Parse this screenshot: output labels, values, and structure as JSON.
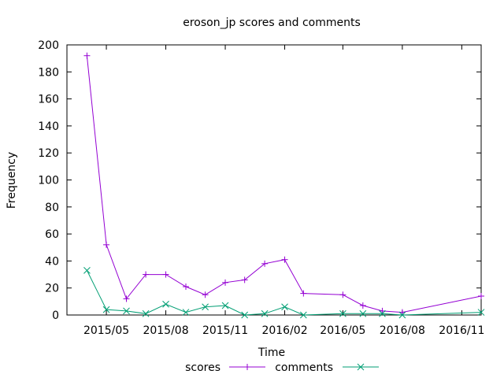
{
  "chart_data": {
    "type": "line",
    "title": "eroson_jp scores and comments",
    "xlabel": "Time",
    "ylabel": "Frequency",
    "ylim": [
      0,
      200
    ],
    "yticks": [
      0,
      20,
      40,
      60,
      80,
      100,
      120,
      140,
      160,
      180,
      200
    ],
    "xlim": [
      "2015-03-01",
      "2016-12-01"
    ],
    "xticks": [
      {
        "value": "2015-05-01",
        "label": "2015/05"
      },
      {
        "value": "2015-08-01",
        "label": "2015/08"
      },
      {
        "value": "2015-11-01",
        "label": "2015/11"
      },
      {
        "value": "2016-02-01",
        "label": "2016/02"
      },
      {
        "value": "2016-05-01",
        "label": "2016/05"
      },
      {
        "value": "2016-08-01",
        "label": "2016/08"
      },
      {
        "value": "2016-11-01",
        "label": "2016/11"
      }
    ],
    "legend_position": "bottom",
    "series": [
      {
        "name": "scores",
        "color": "#9400d3",
        "marker": "plus",
        "points": [
          {
            "x": "2015-04-01",
            "y": 192
          },
          {
            "x": "2015-05-01",
            "y": 52
          },
          {
            "x": "2015-06-01",
            "y": 12
          },
          {
            "x": "2015-07-01",
            "y": 30
          },
          {
            "x": "2015-08-01",
            "y": 30
          },
          {
            "x": "2015-09-01",
            "y": 21
          },
          {
            "x": "2015-10-01",
            "y": 15
          },
          {
            "x": "2015-11-01",
            "y": 24
          },
          {
            "x": "2015-12-01",
            "y": 26
          },
          {
            "x": "2016-01-01",
            "y": 38
          },
          {
            "x": "2016-02-01",
            "y": 41
          },
          {
            "x": "2016-03-01",
            "y": 16
          },
          {
            "x": "2016-05-01",
            "y": 15
          },
          {
            "x": "2016-06-01",
            "y": 7
          },
          {
            "x": "2016-07-01",
            "y": 3
          },
          {
            "x": "2016-08-01",
            "y": 2
          },
          {
            "x": "2016-12-01",
            "y": 14
          }
        ]
      },
      {
        "name": "comments",
        "color": "#009e73",
        "marker": "cross",
        "points": [
          {
            "x": "2015-04-01",
            "y": 33
          },
          {
            "x": "2015-05-01",
            "y": 4
          },
          {
            "x": "2015-06-01",
            "y": 3
          },
          {
            "x": "2015-07-01",
            "y": 1
          },
          {
            "x": "2015-08-01",
            "y": 8
          },
          {
            "x": "2015-09-01",
            "y": 2
          },
          {
            "x": "2015-10-01",
            "y": 6
          },
          {
            "x": "2015-11-01",
            "y": 7
          },
          {
            "x": "2015-12-01",
            "y": 0
          },
          {
            "x": "2016-01-01",
            "y": 1
          },
          {
            "x": "2016-02-01",
            "y": 6
          },
          {
            "x": "2016-03-01",
            "y": 0
          },
          {
            "x": "2016-05-01",
            "y": 1
          },
          {
            "x": "2016-06-01",
            "y": 1
          },
          {
            "x": "2016-07-01",
            "y": 1
          },
          {
            "x": "2016-08-01",
            "y": 0
          },
          {
            "x": "2016-12-01",
            "y": 2
          }
        ]
      }
    ]
  }
}
